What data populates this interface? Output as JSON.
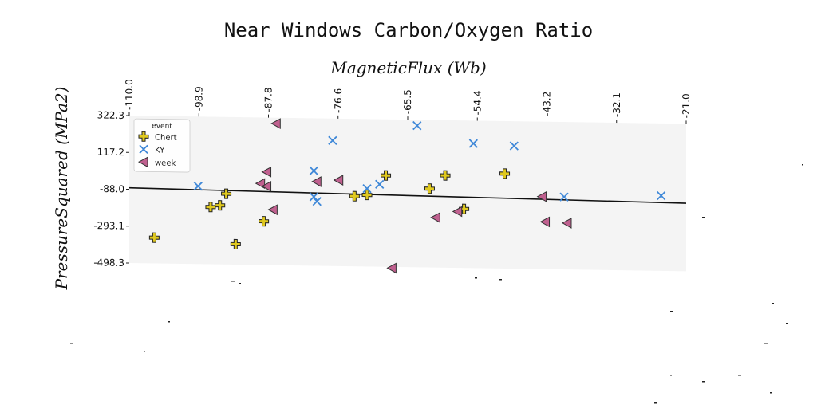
{
  "chart_data": {
    "type": "scatter",
    "title": "Near Windows Carbon/Oxygen Ratio",
    "xlabel": "MagneticFlux (Wb)",
    "ylabel": "PressureSquared (MPa2)",
    "xlim": [
      -110.0,
      -21.0
    ],
    "ylim": [
      -498.3,
      322.3
    ],
    "x_ticks": [
      "-110.0",
      "-98.9",
      "-87.8",
      "-76.6",
      "-65.5",
      "-54.4",
      "-43.2",
      "-32.1",
      "-21.0"
    ],
    "y_ticks": [
      "322.3",
      "117.2",
      "-88.0",
      "-293.1",
      "-498.3"
    ],
    "x_tick_position": "top",
    "grid": false,
    "legend": {
      "title": "event",
      "position": "top-left"
    },
    "series": [
      {
        "name": "Chert",
        "marker": "plus",
        "color": "#e0c91f",
        "points": [
          [
            -106,
            -355
          ],
          [
            -97,
            -180
          ],
          [
            -95.5,
            -170
          ],
          [
            -94.5,
            -105
          ],
          [
            -93,
            -385
          ],
          [
            -88.5,
            -255
          ],
          [
            -74,
            -108
          ],
          [
            -72,
            -100
          ],
          [
            -69,
            10
          ],
          [
            -62,
            -60
          ],
          [
            -59.5,
            15
          ],
          [
            -56.5,
            -170
          ],
          [
            -50,
            30
          ]
        ]
      },
      {
        "name": "KY",
        "color": "#3f88d8",
        "marker": "x",
        "points": [
          [
            -99,
            -65
          ],
          [
            -80.5,
            30
          ],
          [
            -80.5,
            -115
          ],
          [
            -80,
            -140
          ],
          [
            -77.5,
            200
          ],
          [
            -72,
            -65
          ],
          [
            -70,
            -40
          ],
          [
            -64,
            290
          ],
          [
            -55,
            195
          ],
          [
            -48.5,
            185
          ],
          [
            -40.5,
            -95
          ],
          [
            -25,
            -80
          ]
        ]
      },
      {
        "name": "week",
        "color": "#c0608f",
        "marker": "triangle-left",
        "points": [
          [
            -86.5,
            290
          ],
          [
            -88,
            20
          ],
          [
            -89,
            -45
          ],
          [
            -88,
            -60
          ],
          [
            -80,
            -30
          ],
          [
            -87,
            -190
          ],
          [
            -76.5,
            -20
          ],
          [
            -68,
            -505
          ],
          [
            -61,
            -220
          ],
          [
            -57.5,
            -185
          ],
          [
            -44,
            -95
          ],
          [
            -43.5,
            -235
          ],
          [
            -40,
            -240
          ]
        ]
      }
    ],
    "trendline": {
      "x": [
        -110.0,
        -21.0
      ],
      "y": [
        -80,
        -120
      ]
    }
  }
}
